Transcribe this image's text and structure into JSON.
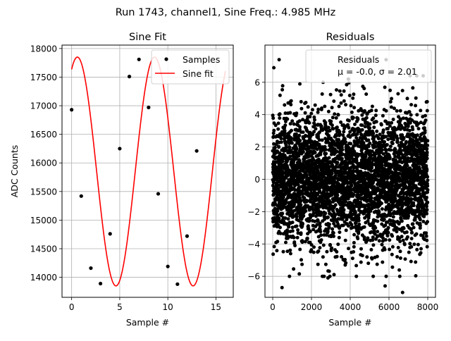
{
  "figure": {
    "suptitle": "Run 1743, channel1, Sine Freq.: 4.985 MHz"
  },
  "colors": {
    "samples": "#000000",
    "fit": "#ff0000",
    "grid": "#b0b0b0",
    "axes": "#000000"
  },
  "chart_data": [
    {
      "type": "line",
      "title": "Sine Fit",
      "xlabel": "Sample #",
      "ylabel": "ADC Counts",
      "xlim": [
        -1,
        16.8
      ],
      "ylim": [
        13650,
        18060
      ],
      "xticks": [
        0,
        5,
        10,
        15
      ],
      "yticks": [
        14000,
        14500,
        15000,
        15500,
        16000,
        16500,
        17000,
        17500,
        18000
      ],
      "grid": true,
      "legend": {
        "placement": "top-right",
        "entries": [
          "Samples",
          "Sine fit"
        ]
      },
      "series": [
        {
          "name": "Samples",
          "kind": "scatter",
          "x": [
            0,
            1,
            2,
            3,
            4,
            5,
            6,
            7,
            8,
            9,
            10,
            11,
            12,
            13
          ],
          "y": [
            16930,
            15420,
            14160,
            13890,
            14760,
            16250,
            17510,
            17810,
            16970,
            15460,
            14190,
            13880,
            14720,
            16210
          ]
        },
        {
          "name": "Sine fit",
          "kind": "line",
          "model": {
            "offset": 15850,
            "amplitude": 2000,
            "period_samples": 8.02,
            "phase_deg": 63.26,
            "x_range": [
              0,
              16
            ]
          }
        }
      ]
    },
    {
      "type": "scatter",
      "title": "Residuals",
      "xlabel": "Sample #",
      "ylabel": "",
      "xlim": [
        -400,
        8400
      ],
      "ylim": [
        -7.3,
        8.3
      ],
      "xticks": [
        0,
        2000,
        4000,
        6000,
        8000
      ],
      "yticks": [
        -6,
        -4,
        -2,
        0,
        2,
        4,
        6
      ],
      "grid": true,
      "legend": {
        "placement": "top-right",
        "entries": [
          "Residuals",
          "μ = -0.0, σ = 2.01"
        ]
      },
      "series": [
        {
          "name": "Residuals",
          "n_points": 8000,
          "x_range": [
            0,
            7999
          ],
          "mean": -0.0,
          "std": 2.01,
          "outliers": [
            [
              60,
              6.9
            ],
            [
              330,
              7.4
            ],
            [
              480,
              -6.7
            ],
            [
              2600,
              6.0
            ],
            [
              2850,
              -6.1
            ],
            [
              5850,
              7.4
            ],
            [
              5800,
              -6.6
            ],
            [
              6700,
              -7.0
            ],
            [
              3900,
              6.2
            ],
            [
              1400,
              5.9
            ]
          ]
        }
      ]
    }
  ]
}
